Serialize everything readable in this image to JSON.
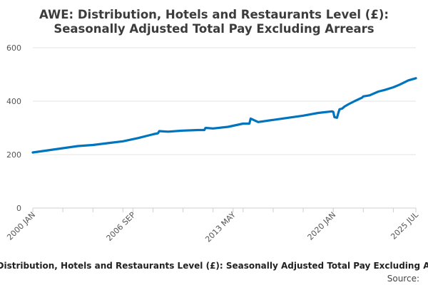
{
  "chart_data": {
    "type": "line",
    "title": [
      "AWE: Distribution, Hotels and Restaurants Level (£):",
      "Seasonally Adjusted Total Pay Excluding Arrears"
    ],
    "xlabel": "",
    "ylabel": "",
    "x_ticks": [
      "2000 JAN",
      "2006 SEP",
      "2013 MAY",
      "2020 JAN",
      "2025 JUL"
    ],
    "y_ticks": [
      0,
      200,
      400,
      600
    ],
    "ylim": [
      0,
      600
    ],
    "grid": true,
    "legend_position": "bottom",
    "series": [
      {
        "name": "AWE: Distribution, Hotels and Restaurants Level (£): Seasonally Adjusted Total Pay Excluding Arrears",
        "color": "#0075be",
        "x": [
          "2000 JAN",
          "2001 JAN",
          "2002 JAN",
          "2003 JAN",
          "2004 JAN",
          "2005 JAN",
          "2006 JAN",
          "2006 SEP",
          "2007 JAN",
          "2008 JAN",
          "2008 MAY",
          "2008 JUN",
          "2009 JAN",
          "2010 JAN",
          "2011 JAN",
          "2011 JUN",
          "2011 JUL",
          "2012 JAN",
          "2013 JAN",
          "2013 MAY",
          "2014 JAN",
          "2014 JUN",
          "2014 JUL",
          "2015 JAN",
          "2016 JAN",
          "2017 JAN",
          "2018 JAN",
          "2019 JAN",
          "2019 DEC",
          "2020 JAN",
          "2020 FEB",
          "2020 APR",
          "2020 MAY",
          "2020 JUN",
          "2020 AUG",
          "2020 OCT",
          "2021 JAN",
          "2021 JUN",
          "2021 DEC",
          "2022 JAN",
          "2022 JUN",
          "2023 JAN",
          "2023 JUN",
          "2024 JAN",
          "2024 JUN",
          "2025 JAN",
          "2025 JUL"
        ],
        "values": [
          208,
          216,
          224,
          232,
          236,
          243,
          250,
          258,
          262,
          276,
          280,
          288,
          286,
          290,
          292,
          292,
          300,
          298,
          304,
          308,
          316,
          316,
          335,
          322,
          330,
          338,
          346,
          356,
          362,
          360,
          340,
          338,
          355,
          370,
          372,
          380,
          388,
          400,
          413,
          418,
          422,
          436,
          442,
          452,
          462,
          478,
          486
        ]
      }
    ]
  },
  "legend": {
    "text": "AWE: Distribution, Hotels and Restaurants Level (£): Seasonally Adjusted Total Pay Excluding Arrears"
  },
  "source": {
    "label": "Source:"
  }
}
